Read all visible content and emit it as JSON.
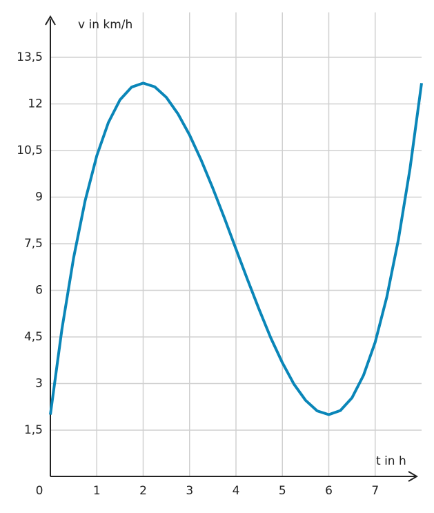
{
  "chart_data": {
    "type": "line",
    "y_label": "v in km/h",
    "x_label": "t in h",
    "x": [
      0,
      0.25,
      0.5,
      0.75,
      1,
      1.25,
      1.5,
      1.75,
      2,
      2.25,
      2.5,
      2.75,
      3,
      3.25,
      3.5,
      3.75,
      4,
      4.25,
      4.5,
      4.75,
      5,
      5.25,
      5.5,
      5.75,
      6,
      6.25,
      6.5,
      6.75,
      7,
      7.25,
      7.5,
      7.75,
      8
    ],
    "series": [
      {
        "color": "#0a86b8",
        "values": [
          2,
          4.76,
          7.04,
          8.89,
          10.33,
          11.4,
          12.13,
          12.54,
          12.67,
          12.55,
          12.21,
          11.68,
          11,
          10.19,
          9.29,
          8.33,
          7.33,
          6.34,
          5.38,
          4.47,
          3.67,
          2.98,
          2.46,
          2.12,
          2,
          2.13,
          2.54,
          3.27,
          4.33,
          5.78,
          7.63,
          9.91,
          12.67
        ]
      }
    ],
    "xlim": [
      0,
      8
    ],
    "ylim": [
      0,
      14.8
    ],
    "xticks": [
      0,
      1,
      2,
      3,
      4,
      5,
      6,
      7
    ],
    "yticks": [
      {
        "value": 1.5,
        "label": "1,5"
      },
      3,
      {
        "value": 4.5,
        "label": "4,5"
      },
      6,
      {
        "value": 7.5,
        "label": "7,5"
      },
      9,
      {
        "value": 10.5,
        "label": "10,5"
      },
      12,
      {
        "value": 13.5,
        "label": "13,5"
      }
    ],
    "grid": true
  }
}
